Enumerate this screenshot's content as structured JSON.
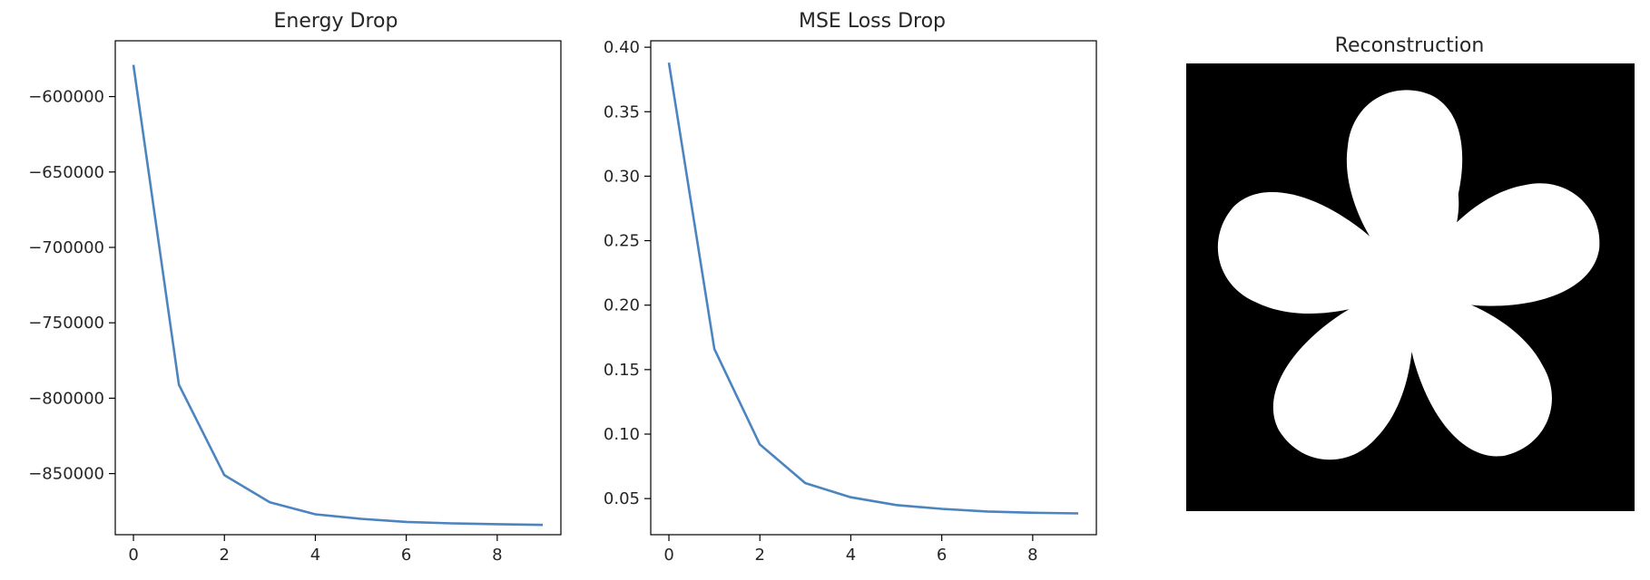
{
  "chart_data": [
    {
      "type": "line",
      "title": "Energy Drop",
      "xlabel": "",
      "ylabel": "",
      "x": [
        0,
        1,
        2,
        3,
        4,
        5,
        6,
        7,
        8,
        9
      ],
      "series": [
        {
          "values": [
            -579000,
            -791000,
            -851000,
            -869000,
            -877000,
            -880000,
            -882000,
            -883000,
            -883500,
            -884000
          ]
        }
      ],
      "xlim": [
        -0.4,
        9.4
      ],
      "ylim": [
        -890500,
        -563000
      ],
      "xticks": [
        0,
        2,
        4,
        6,
        8
      ],
      "xtick_labels": [
        "0",
        "2",
        "4",
        "6",
        "8"
      ],
      "yticks": [
        -600000,
        -650000,
        -700000,
        -750000,
        -800000,
        -850000
      ],
      "ytick_labels": [
        "−600000",
        "−650000",
        "−700000",
        "−750000",
        "−800000",
        "−850000"
      ],
      "line_color": "#4c84c0",
      "grid": false
    },
    {
      "type": "line",
      "title": "MSE Loss Drop",
      "xlabel": "",
      "ylabel": "",
      "x": [
        0,
        1,
        2,
        3,
        4,
        5,
        6,
        7,
        8,
        9
      ],
      "series": [
        {
          "values": [
            0.388,
            0.166,
            0.092,
            0.062,
            0.051,
            0.045,
            0.042,
            0.04,
            0.039,
            0.0385
          ]
        }
      ],
      "xlim": [
        -0.4,
        9.4
      ],
      "ylim": [
        0.022,
        0.405
      ],
      "xticks": [
        0,
        2,
        4,
        6,
        8
      ],
      "xtick_labels": [
        "0",
        "2",
        "4",
        "6",
        "8"
      ],
      "yticks": [
        0.4,
        0.35,
        0.3,
        0.25,
        0.2,
        0.15,
        0.1,
        0.05
      ],
      "ytick_labels": [
        "0.40",
        "0.35",
        "0.30",
        "0.25",
        "0.20",
        "0.15",
        "0.10",
        "0.05"
      ],
      "line_color": "#4c84c0",
      "grid": false
    }
  ],
  "reconstruction": {
    "title": "Reconstruction",
    "background_color": "#000000",
    "shape_color": "#ffffff",
    "shape": "five-petal-flower"
  }
}
